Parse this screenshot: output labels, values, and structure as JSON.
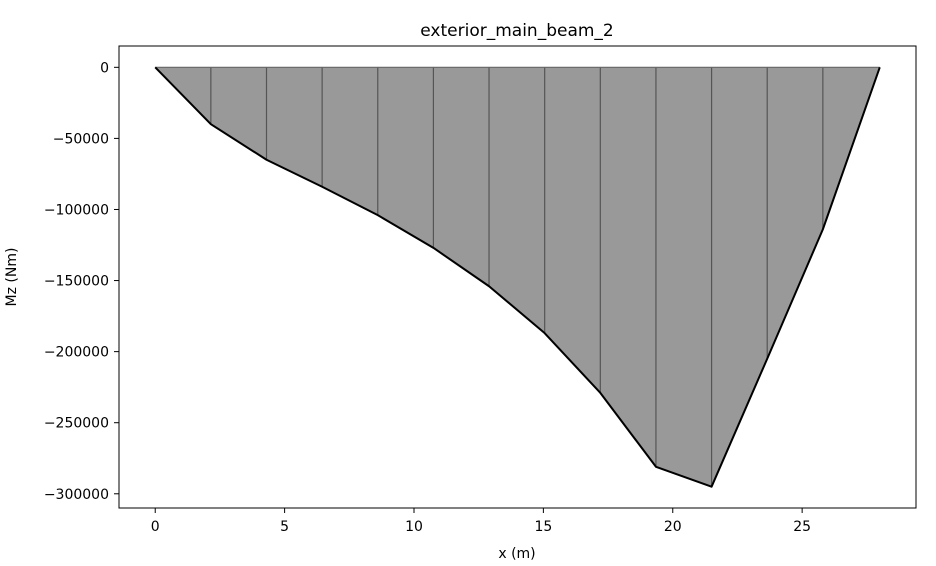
{
  "chart_data": {
    "type": "area",
    "title": "exterior_main_beam_2",
    "xlabel": "x (m)",
    "ylabel": "Mz (Nm)",
    "xlim": [
      -1.4,
      29.4
    ],
    "ylim": [
      -310000,
      15000
    ],
    "xticks": [
      0,
      5,
      10,
      15,
      20,
      25
    ],
    "yticks": [
      0,
      -50000,
      -100000,
      -150000,
      -200000,
      -250000,
      -300000
    ],
    "ytick_labels": [
      "0",
      "−50000",
      "−100000",
      "−150000",
      "−200000",
      "−250000",
      "−300000"
    ],
    "grid": false,
    "fill_color": "#999999",
    "line_color": "#000000",
    "series": [
      {
        "x": [
          0,
          2.15,
          4.3,
          6.45,
          8.6,
          10.75,
          12.9,
          15.05,
          17.2,
          19.35,
          21.5,
          23.65,
          25.8,
          28.0
        ],
        "values": [
          0,
          -40000,
          -65000,
          -84000,
          -104000,
          -127000,
          -154000,
          -187000,
          -229000,
          -281000,
          -295000,
          -205000,
          -114000,
          0
        ]
      }
    ]
  }
}
